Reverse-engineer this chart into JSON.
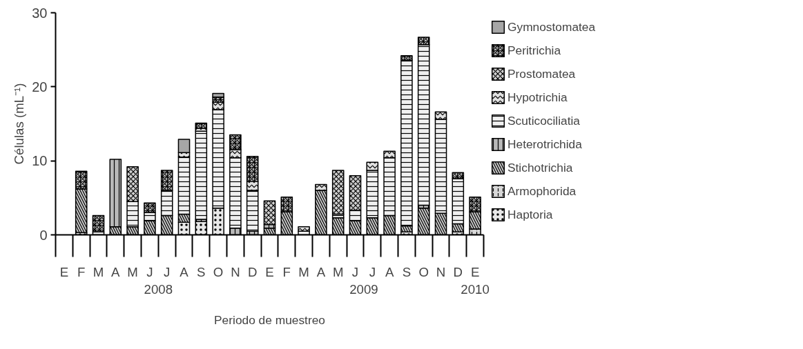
{
  "chart_data": {
    "type": "bar",
    "stacked": true,
    "xlabel": "Periodo de muestreo",
    "ylabel": "Células (mL⁻¹)",
    "categories": [
      "E",
      "F",
      "M",
      "A",
      "M",
      "J",
      "J",
      "A",
      "S",
      "O",
      "N",
      "D",
      "E",
      "F",
      "M",
      "A",
      "M",
      "J",
      "J",
      "A",
      "S",
      "O",
      "N",
      "D",
      "E"
    ],
    "annotations": [
      "2008",
      "2009",
      "2010"
    ],
    "ylim": [
      0,
      30
    ],
    "yticks": [
      0,
      10,
      20,
      30
    ],
    "grid": false,
    "legend": "right",
    "series": [
      {
        "name": "Haptoria",
        "color": "#e8e8e8",
        "values": [
          null,
          0.3,
          null,
          null,
          null,
          null,
          null,
          1.7,
          1.8,
          3.6,
          null,
          null,
          null,
          null,
          null,
          null,
          null,
          null,
          null,
          null,
          0.4,
          null,
          null,
          0.4,
          null
        ]
      },
      {
        "name": "Armophorida",
        "color": "#d8d8d8",
        "values": [
          null,
          null,
          null,
          null,
          null,
          null,
          null,
          null,
          null,
          null,
          null,
          null,
          null,
          null,
          null,
          null,
          null,
          null,
          null,
          null,
          null,
          null,
          null,
          null,
          0.8
        ]
      },
      {
        "name": "Stichotrichia",
        "color": "#c8c8c8",
        "values": [
          null,
          5.9,
          null,
          1.1,
          1.1,
          1.9,
          2.6,
          1.1,
          null,
          null,
          null,
          null,
          0.9,
          3.1,
          null,
          6.0,
          2.3,
          1.9,
          2.3,
          2.6,
          0.8,
          3.6,
          2.9,
          1.1,
          2.3
        ]
      },
      {
        "name": "Heterotrichida",
        "color": "#b8b8b8",
        "values": [
          null,
          null,
          null,
          9.1,
          null,
          null,
          null,
          null,
          0.3,
          null,
          0.9,
          0.5,
          0.5,
          null,
          null,
          null,
          null,
          null,
          null,
          null,
          null,
          0.4,
          null,
          null,
          null
        ]
      },
      {
        "name": "Scuticociliatia",
        "color": "#f0f0f0",
        "values": [
          null,
          null,
          0.4,
          null,
          3.4,
          1.1,
          3.4,
          7.7,
          11.9,
          13.3,
          9.5,
          5.5,
          null,
          null,
          0.5,
          null,
          0.5,
          1.4,
          6.4,
          7.8,
          22.4,
          21.7,
          12.7,
          6.1,
          null
        ]
      },
      {
        "name": "Hypotrichia",
        "color": "#e0e0e0",
        "values": [
          null,
          null,
          null,
          null,
          null,
          null,
          null,
          0.6,
          0.4,
          1.0,
          1.1,
          1.2,
          null,
          null,
          0.6,
          0.8,
          null,
          null,
          1.1,
          0.9,
          null,
          null,
          1.0,
          null,
          null
        ]
      },
      {
        "name": "Prostomatea",
        "color": "#d0d0d0",
        "values": [
          null,
          null,
          null,
          null,
          4.7,
          null,
          null,
          null,
          null,
          null,
          null,
          null,
          3.2,
          null,
          null,
          null,
          5.9,
          4.7,
          null,
          null,
          null,
          null,
          null,
          null,
          null
        ]
      },
      {
        "name": "Peritrichia",
        "color": "#c0c0c0",
        "values": [
          null,
          2.4,
          2.2,
          null,
          null,
          1.3,
          2.7,
          null,
          0.7,
          0.7,
          2.0,
          3.4,
          null,
          2.0,
          null,
          null,
          null,
          null,
          null,
          null,
          0.6,
          1.0,
          null,
          0.8,
          2.0
        ]
      },
      {
        "name": "Gymnostomatea",
        "color": "#a6a6a6",
        "values": [
          null,
          null,
          null,
          null,
          null,
          null,
          null,
          1.8,
          null,
          0.5,
          null,
          null,
          null,
          null,
          null,
          null,
          null,
          null,
          null,
          null,
          null,
          null,
          null,
          null,
          null
        ]
      }
    ]
  }
}
